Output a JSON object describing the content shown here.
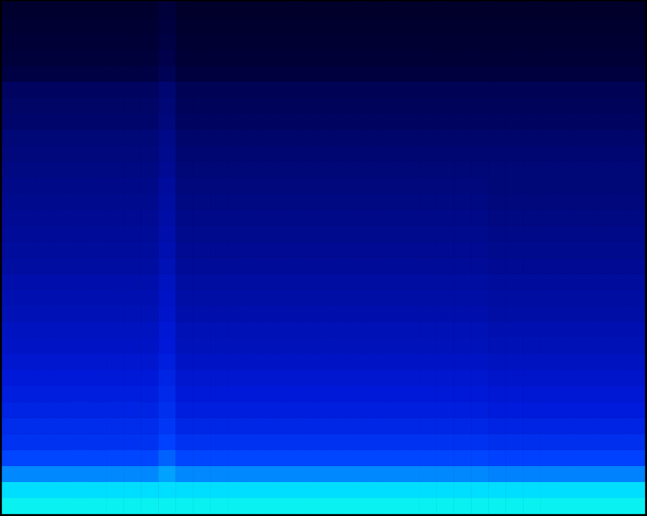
{
  "chart_data": {
    "type": "heatmap",
    "tick_labels": false,
    "grid": false,
    "zlim": [
      0,
      100
    ],
    "z": [
      [
        87,
        87,
        87,
        87,
        87,
        87,
        87,
        87,
        87,
        87,
        87,
        87,
        87,
        87,
        87,
        87,
        87,
        87,
        87,
        87,
        87,
        87,
        87,
        87,
        87,
        87,
        87,
        87,
        87,
        87,
        87,
        87,
        87,
        87,
        87,
        87,
        87
      ],
      [
        83,
        83,
        83,
        83,
        83,
        83,
        83,
        83,
        83,
        83,
        83,
        83,
        83,
        83,
        83,
        83,
        83,
        83,
        83,
        83,
        83,
        83,
        83,
        83,
        83,
        83,
        83,
        83,
        83,
        83,
        83,
        83,
        83,
        83,
        83,
        83,
        83
      ],
      [
        70,
        70,
        70,
        70,
        70,
        70,
        70,
        70,
        70,
        74,
        70,
        70,
        70,
        70,
        70,
        70,
        70,
        70,
        70,
        70,
        70,
        70,
        70,
        70,
        70,
        70,
        70,
        70,
        69,
        69,
        69,
        69,
        69,
        69,
        69,
        69,
        69
      ],
      [
        58,
        58,
        58,
        58,
        58,
        58,
        58,
        58,
        58,
        63,
        58,
        58,
        58,
        58,
        58,
        58,
        58,
        58,
        58,
        58,
        58,
        58,
        58,
        58,
        58,
        58,
        58,
        58,
        57,
        57,
        57,
        57,
        57,
        57,
        57,
        57,
        57
      ],
      [
        52,
        52,
        52,
        52,
        52,
        52,
        52,
        52,
        52,
        57,
        52,
        52,
        52,
        52,
        52,
        52,
        52,
        52,
        52,
        52,
        52,
        52,
        52,
        52,
        52,
        52,
        52,
        52,
        51,
        51,
        51,
        51,
        51,
        51,
        51,
        51,
        51
      ],
      [
        50,
        50,
        50,
        50,
        50,
        50,
        50,
        50,
        50,
        54,
        48,
        48,
        48,
        48,
        48,
        48,
        48,
        48,
        48,
        48,
        48,
        48,
        48,
        48,
        48,
        48,
        48,
        48,
        47,
        47,
        47,
        47,
        47,
        47,
        47,
        47,
        47
      ],
      [
        47,
        47,
        47,
        47,
        47,
        47,
        47,
        47,
        47,
        51,
        45,
        45,
        45,
        45,
        45,
        45,
        45,
        45,
        45,
        45,
        45,
        45,
        45,
        45,
        45,
        45,
        45,
        45,
        44,
        44,
        44,
        44,
        44,
        44,
        44,
        44,
        44
      ],
      [
        45,
        45,
        45,
        45,
        45,
        45,
        45,
        45,
        45,
        49,
        43,
        43,
        43,
        43,
        43,
        43,
        43,
        43,
        43,
        43,
        43,
        43,
        43,
        43,
        43,
        43,
        43,
        43,
        42,
        42,
        42,
        42,
        42,
        42,
        42,
        42,
        42
      ],
      [
        43,
        43,
        43,
        43,
        43,
        43,
        43,
        43,
        43,
        47,
        41,
        41,
        41,
        41,
        41,
        41,
        41,
        41,
        41,
        41,
        41,
        41,
        41,
        41,
        41,
        41,
        41,
        41,
        40,
        40,
        40,
        40,
        40,
        40,
        40,
        40,
        40
      ],
      [
        41,
        41,
        41,
        41,
        41,
        41,
        41,
        41,
        41,
        45,
        39,
        39,
        39,
        39,
        39,
        39,
        39,
        39,
        39,
        39,
        39,
        39,
        39,
        39,
        39,
        39,
        39,
        39,
        38,
        38,
        38,
        38,
        38,
        38,
        38,
        38,
        38
      ],
      [
        39,
        39,
        39,
        39,
        39,
        39,
        39,
        39,
        39,
        43,
        37,
        37,
        37,
        37,
        37,
        37,
        37,
        37,
        37,
        37,
        37,
        37,
        37,
        37,
        37,
        37,
        37,
        37,
        36,
        36,
        36,
        36,
        36,
        36,
        36,
        36,
        36
      ],
      [
        38,
        38,
        38,
        38,
        38,
        38,
        38,
        38,
        38,
        42,
        36,
        36,
        36,
        36,
        36,
        36,
        36,
        36,
        36,
        36,
        36,
        36,
        36,
        36,
        36,
        36,
        36,
        36,
        35,
        35,
        35,
        35,
        35,
        35,
        35,
        35,
        35
      ],
      [
        36,
        36,
        36,
        36,
        36,
        36,
        36,
        36,
        36,
        40,
        34,
        34,
        34,
        34,
        34,
        34,
        34,
        34,
        34,
        34,
        34,
        34,
        34,
        34,
        34,
        34,
        34,
        34,
        33,
        33,
        33,
        33,
        33,
        33,
        33,
        33,
        33
      ],
      [
        35,
        35,
        35,
        35,
        35,
        35,
        35,
        35,
        35,
        39,
        33,
        33,
        33,
        33,
        33,
        33,
        33,
        33,
        33,
        33,
        33,
        33,
        33,
        33,
        33,
        33,
        33,
        33,
        32,
        32,
        32,
        32,
        32,
        32,
        32,
        32,
        32
      ],
      [
        34,
        34,
        34,
        34,
        34,
        34,
        34,
        34,
        34,
        38,
        32,
        32,
        32,
        32,
        32,
        32,
        32,
        32,
        32,
        32,
        32,
        32,
        32,
        32,
        32,
        32,
        32,
        32,
        31,
        31,
        31,
        31,
        31,
        31,
        31,
        31,
        31
      ],
      [
        32,
        32,
        32,
        32,
        32,
        32,
        32,
        32,
        32,
        36,
        30,
        30,
        30,
        30,
        30,
        30,
        30,
        30,
        30,
        30,
        30,
        30,
        30,
        30,
        30,
        30,
        30,
        30,
        29,
        29,
        29,
        29,
        29,
        29,
        29,
        29,
        29
      ],
      [
        31,
        31,
        31,
        31,
        31,
        31,
        31,
        31,
        31,
        35,
        29,
        29,
        29,
        29,
        29,
        29,
        29,
        29,
        29,
        29,
        29,
        29,
        29,
        29,
        29,
        29,
        29,
        29,
        28,
        28,
        28,
        28,
        28,
        28,
        28,
        28,
        28
      ],
      [
        30,
        30,
        30,
        30,
        30,
        30,
        30,
        30,
        30,
        34,
        28,
        28,
        28,
        28,
        28,
        28,
        28,
        28,
        28,
        28,
        28,
        28,
        28,
        28,
        28,
        28,
        28,
        28,
        27,
        27,
        27,
        27,
        27,
        27,
        27,
        27,
        27
      ],
      [
        29,
        29,
        29,
        29,
        29,
        29,
        29,
        29,
        29,
        33,
        27,
        27,
        27,
        27,
        27,
        27,
        27,
        27,
        27,
        27,
        27,
        27,
        27,
        27,
        27,
        27,
        27,
        27,
        26,
        26,
        26,
        26,
        26,
        26,
        26,
        26,
        26
      ],
      [
        28,
        28,
        28,
        28,
        28,
        28,
        28,
        28,
        28,
        32,
        26,
        26,
        26,
        26,
        26,
        26,
        26,
        26,
        26,
        26,
        26,
        26,
        26,
        26,
        26,
        26,
        26,
        26,
        25,
        25,
        25,
        25,
        25,
        25,
        25,
        25,
        25
      ],
      [
        27,
        27,
        27,
        27,
        27,
        27,
        27,
        27,
        27,
        31,
        25,
        25,
        25,
        25,
        25,
        25,
        25,
        25,
        25,
        25,
        25,
        25,
        25,
        25,
        25,
        25,
        25,
        25,
        24,
        24,
        24,
        24,
        24,
        24,
        24,
        24,
        24
      ],
      [
        26,
        26,
        26,
        26,
        26,
        26,
        26,
        26,
        26,
        29,
        24,
        24,
        24,
        24,
        24,
        24,
        24,
        24,
        24,
        24,
        24,
        24,
        24,
        24,
        24,
        24,
        24,
        24,
        24,
        24,
        24,
        24,
        24,
        24,
        24,
        24,
        24
      ],
      [
        25,
        25,
        25,
        25,
        25,
        25,
        25,
        25,
        25,
        28,
        23,
        23,
        23,
        23,
        23,
        23,
        23,
        23,
        23,
        23,
        23,
        23,
        23,
        23,
        23,
        23,
        23,
        23,
        23,
        23,
        23,
        23,
        23,
        23,
        23,
        23,
        23
      ],
      [
        24,
        24,
        24,
        24,
        24,
        24,
        24,
        24,
        24,
        27,
        22,
        22,
        22,
        22,
        22,
        22,
        22,
        22,
        22,
        22,
        22,
        22,
        22,
        22,
        22,
        22,
        22,
        22,
        22,
        22,
        22,
        22,
        22,
        22,
        22,
        22,
        22
      ],
      [
        22,
        22,
        22,
        22,
        22,
        22,
        22,
        22,
        22,
        25,
        20,
        20,
        20,
        20,
        20,
        20,
        20,
        20,
        20,
        20,
        20,
        20,
        20,
        20,
        20,
        20,
        20,
        20,
        20,
        20,
        20,
        20,
        20,
        20,
        20,
        20,
        20
      ],
      [
        21,
        21,
        21,
        21,
        21,
        21,
        21,
        21,
        21,
        24,
        19,
        19,
        19,
        19,
        19,
        19,
        19,
        19,
        19,
        19,
        19,
        19,
        19,
        19,
        19,
        19,
        19,
        19,
        19,
        19,
        19,
        19,
        19,
        19,
        19,
        19,
        19
      ],
      [
        20,
        20,
        20,
        20,
        20,
        20,
        20,
        20,
        20,
        23,
        18,
        18,
        18,
        18,
        18,
        18,
        18,
        18,
        18,
        18,
        18,
        18,
        18,
        18,
        18,
        18,
        18,
        18,
        18,
        18,
        18,
        18,
        18,
        18,
        18,
        18,
        18
      ],
      [
        15,
        15,
        15,
        15,
        15,
        15,
        15,
        15,
        15,
        18,
        14,
        14,
        14,
        14,
        14,
        14,
        14,
        14,
        14,
        14,
        14,
        14,
        14,
        14,
        14,
        14,
        14,
        14,
        14,
        14,
        14,
        14,
        14,
        14,
        14,
        14,
        14
      ],
      [
        13,
        13,
        13,
        13,
        13,
        13,
        13,
        13,
        13,
        16,
        12,
        12,
        12,
        12,
        12,
        12,
        12,
        12,
        12,
        12,
        12,
        12,
        12,
        12,
        12,
        12,
        12,
        12,
        12,
        12,
        12,
        12,
        12,
        12,
        12,
        12,
        12
      ],
      [
        12,
        12,
        12,
        12,
        12,
        12,
        12,
        12,
        12,
        15,
        11,
        11,
        11,
        11,
        11,
        11,
        11,
        11,
        11,
        11,
        11,
        11,
        11,
        11,
        11,
        11,
        11,
        11,
        11,
        11,
        11,
        11,
        11,
        11,
        11,
        11,
        11
      ],
      [
        11,
        11,
        11,
        11,
        11,
        11,
        11,
        11,
        11,
        14,
        10,
        10,
        10,
        10,
        10,
        10,
        10,
        10,
        10,
        10,
        10,
        10,
        10,
        10,
        10,
        10,
        10,
        10,
        10,
        10,
        10,
        10,
        10,
        10,
        10,
        10,
        10
      ],
      [
        10,
        10,
        10,
        10,
        10,
        10,
        10,
        10,
        10,
        13,
        9,
        9,
        9,
        9,
        9,
        9,
        9,
        9,
        9,
        9,
        9,
        9,
        9,
        9,
        9,
        9,
        9,
        9,
        9,
        9,
        9,
        9,
        9,
        9,
        9,
        9,
        9
      ]
    ]
  }
}
